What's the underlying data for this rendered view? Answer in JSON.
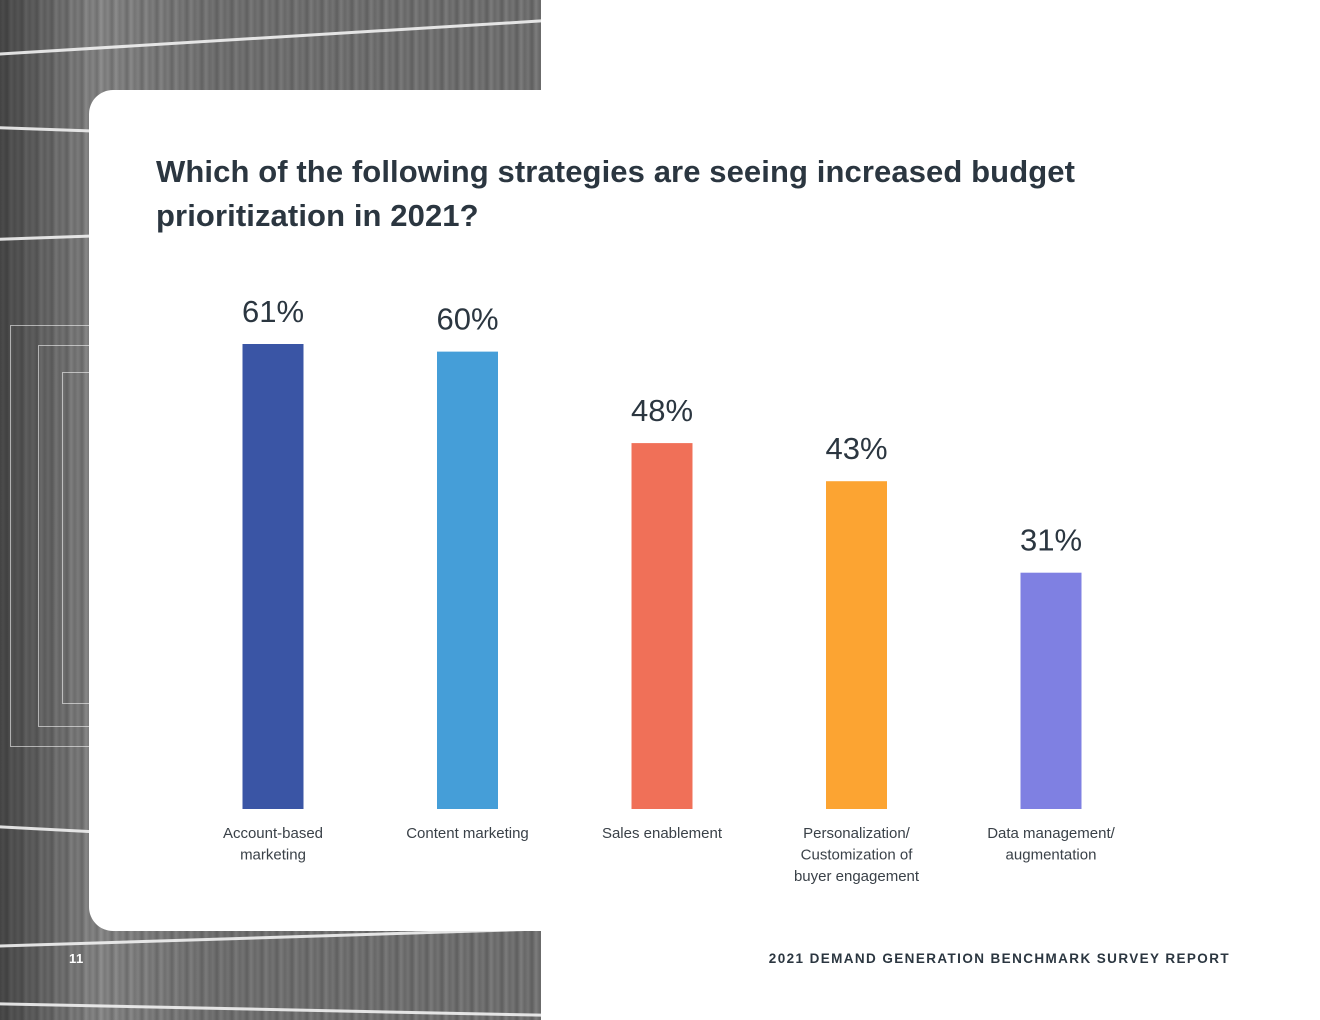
{
  "page": {
    "number": "11",
    "report_title": "2021 DEMAND GENERATION BENCHMARK SURVEY REPORT"
  },
  "chart_data": {
    "type": "bar",
    "title": "Which of the following strategies are seeing increased budget prioritization in 2021?",
    "categories": [
      [
        "Account-based",
        "marketing"
      ],
      [
        "Content marketing"
      ],
      [
        "Sales enablement"
      ],
      [
        "Personalization/",
        "Customization of",
        "buyer engagement"
      ],
      [
        "Data management/",
        "augmentation"
      ]
    ],
    "values": [
      61,
      60,
      48,
      43,
      31
    ],
    "value_labels": [
      "61%",
      "60%",
      "48%",
      "43%",
      "31%"
    ],
    "colors": [
      "#3a55a5",
      "#459ed8",
      "#f07058",
      "#fca432",
      "#7f80e2"
    ],
    "xlabel": "",
    "ylabel": "",
    "ylim": [
      0,
      61
    ],
    "grid": false,
    "legend": "none"
  }
}
